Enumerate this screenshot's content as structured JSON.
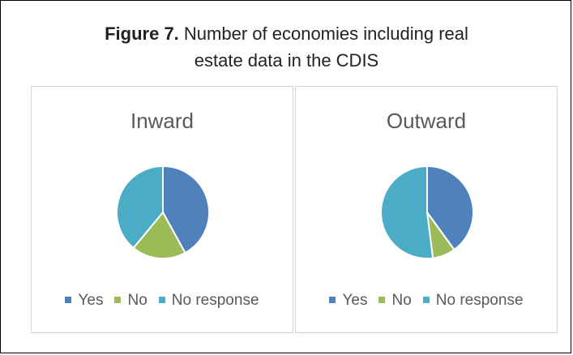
{
  "figure": {
    "label": "Figure 7.",
    "title_line1": "Number of economies including real",
    "title_line2": "estate data in the CDIS"
  },
  "chart_data": [
    {
      "type": "pie",
      "title": "Inward",
      "categories": [
        "Yes",
        "No",
        "No response"
      ],
      "values": [
        42,
        19,
        39
      ],
      "colors": [
        "#4f81bd",
        "#9bbb59",
        "#4bacc6"
      ],
      "legend_position": "bottom"
    },
    {
      "type": "pie",
      "title": "Outward",
      "categories": [
        "Yes",
        "No",
        "No response"
      ],
      "values": [
        40,
        8,
        52
      ],
      "colors": [
        "#4f81bd",
        "#9bbb59",
        "#4bacc6"
      ],
      "legend_position": "bottom"
    }
  ]
}
